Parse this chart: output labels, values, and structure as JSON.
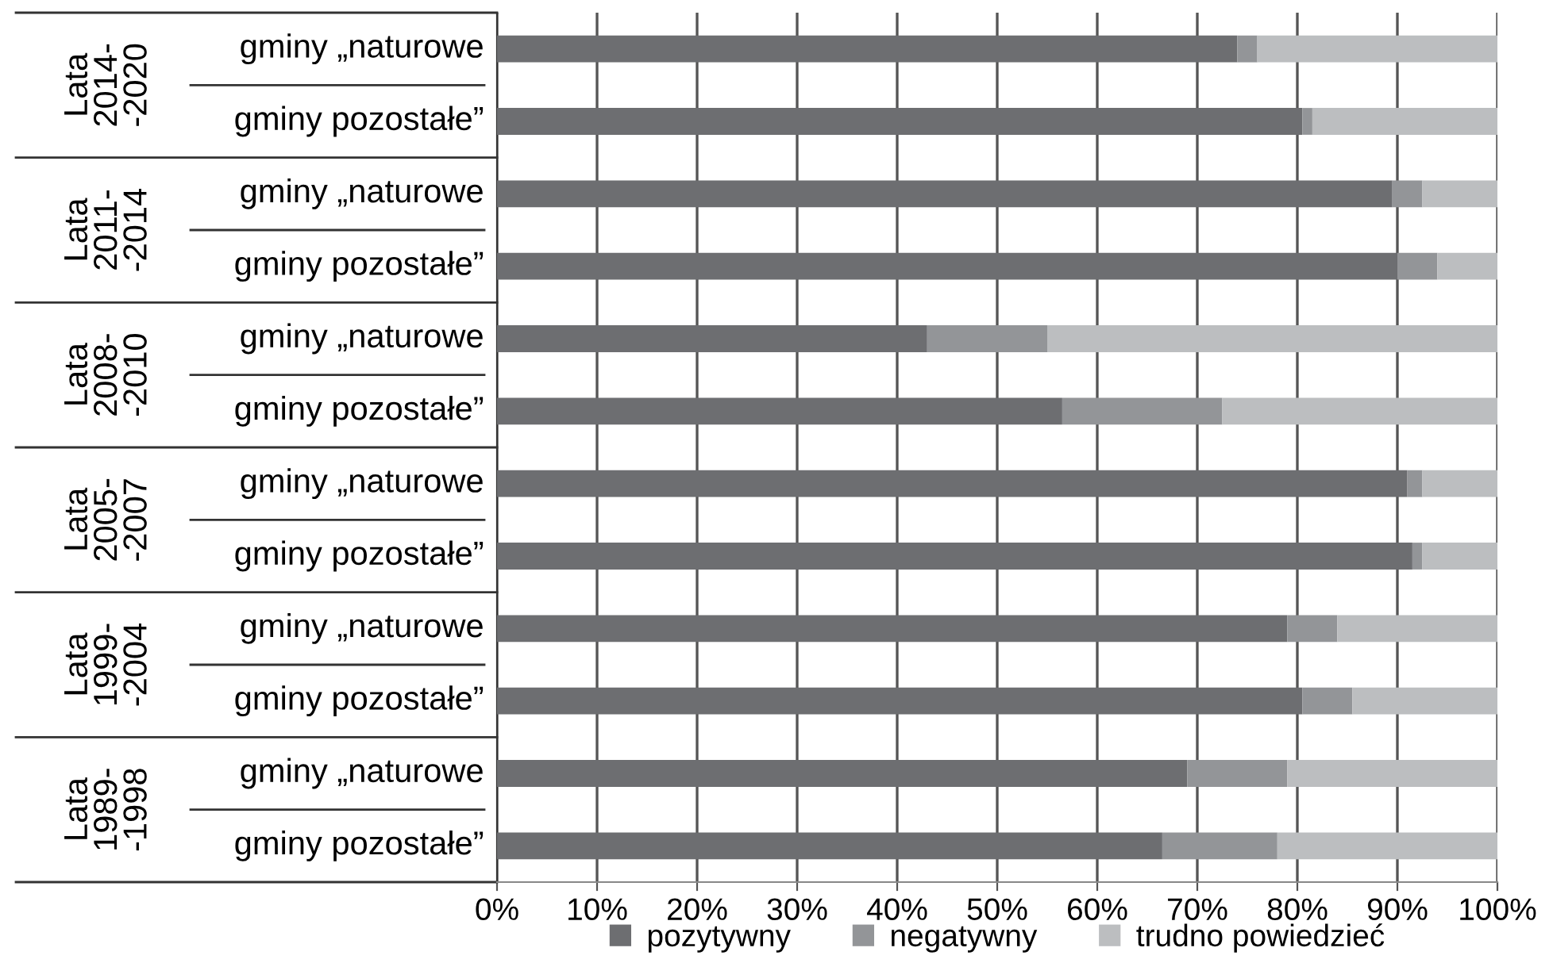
{
  "chart_data": {
    "type": "bar",
    "orientation": "horizontal",
    "stacked": true,
    "categories": [
      "gminy „naturowe",
      "gminy pozostałe”",
      "gminy „naturowe",
      "gminy pozostałe”",
      "gminy „naturowe",
      "gminy pozostałe”",
      "gminy „naturowe",
      "gminy pozostałe”",
      "gminy „naturowe",
      "gminy pozostałe”",
      "gminy „naturowe",
      "gminy pozostałe”"
    ],
    "series": [
      {
        "name": "pozytywny",
        "color": "#6d6e71",
        "values": [
          74,
          80.5,
          89.5,
          90,
          43,
          56.5,
          91,
          91.5,
          79,
          80.5,
          69,
          66.5
        ]
      },
      {
        "name": "negatywny",
        "color": "#939598",
        "values": [
          2,
          1,
          3,
          4,
          12,
          16,
          1.5,
          1,
          5,
          5,
          10,
          11.5
        ]
      },
      {
        "name": "trudno powiedzieć",
        "color": "#bcbec0",
        "values": [
          24,
          18.5,
          7.5,
          6,
          45,
          27.5,
          7.5,
          7.5,
          16,
          14.5,
          21,
          22
        ]
      }
    ],
    "annotations": [
      "Lata\n2014-\n-2020",
      "Lata\n2011-\n-2014",
      "Lata\n2008-\n-2010",
      "Lata\n2005-\n-2007",
      "Lata\n1999-\n-2004",
      "Lata\n1989-\n-1998"
    ],
    "xlim": [
      0,
      100
    ],
    "xticks": [
      {
        "value": 0,
        "label": "0%"
      },
      {
        "value": 10,
        "label": "10%"
      },
      {
        "value": 20,
        "label": "20%"
      },
      {
        "value": 30,
        "label": "30%"
      },
      {
        "value": 40,
        "label": "40%"
      },
      {
        "value": 50,
        "label": "50%"
      },
      {
        "value": 60,
        "label": "60%"
      },
      {
        "value": 70,
        "label": "70%"
      },
      {
        "value": 80,
        "label": "80%"
      },
      {
        "value": 90,
        "label": "90%"
      },
      {
        "value": 100,
        "label": "100%"
      }
    ],
    "grid": "x",
    "legend": "bottom"
  }
}
